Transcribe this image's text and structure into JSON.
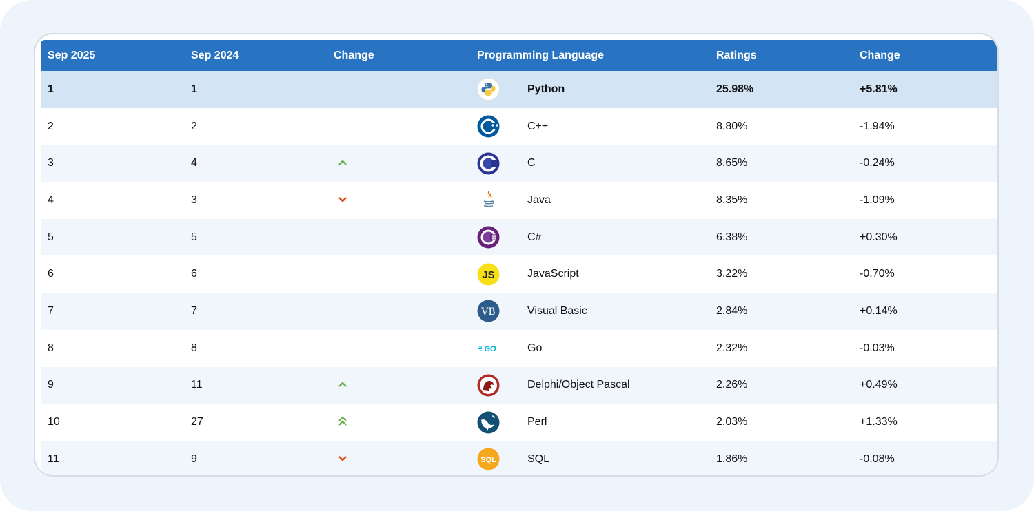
{
  "headers": {
    "col1": "Sep 2025",
    "col2": "Sep 2024",
    "col3": "Change",
    "col4": "Programming Language",
    "col5": "Ratings",
    "col6": "Change"
  },
  "rows": [
    {
      "rank_2025": "1",
      "rank_2024": "1",
      "trend": "none",
      "language": "Python",
      "logo": "python-logo-icon",
      "rating": "25.98%",
      "change": "+5.81%"
    },
    {
      "rank_2025": "2",
      "rank_2024": "2",
      "trend": "none",
      "language": "C++",
      "logo": "cpp-logo-icon",
      "rating": "8.80%",
      "change": "-1.94%"
    },
    {
      "rank_2025": "3",
      "rank_2024": "4",
      "trend": "up",
      "language": "C",
      "logo": "c-logo-icon",
      "rating": "8.65%",
      "change": "-0.24%"
    },
    {
      "rank_2025": "4",
      "rank_2024": "3",
      "trend": "down",
      "language": "Java",
      "logo": "java-logo-icon",
      "rating": "8.35%",
      "change": "-1.09%"
    },
    {
      "rank_2025": "5",
      "rank_2024": "5",
      "trend": "none",
      "language": "C#",
      "logo": "csharp-logo-icon",
      "rating": "6.38%",
      "change": "+0.30%"
    },
    {
      "rank_2025": "6",
      "rank_2024": "6",
      "trend": "none",
      "language": "JavaScript",
      "logo": "javascript-logo-icon",
      "logo_text": "JS",
      "rating": "3.22%",
      "change": "-0.70%"
    },
    {
      "rank_2025": "7",
      "rank_2024": "7",
      "trend": "none",
      "language": "Visual Basic",
      "logo": "visual-basic-logo-icon",
      "logo_text": "VB",
      "rating": "2.84%",
      "change": "+0.14%"
    },
    {
      "rank_2025": "8",
      "rank_2024": "8",
      "trend": "none",
      "language": "Go",
      "logo": "go-logo-icon",
      "logo_text": "GO",
      "rating": "2.32%",
      "change": "-0.03%"
    },
    {
      "rank_2025": "9",
      "rank_2024": "11",
      "trend": "up",
      "language": "Delphi/Object Pascal",
      "logo": "delphi-logo-icon",
      "rating": "2.26%",
      "change": "+0.49%"
    },
    {
      "rank_2025": "10",
      "rank_2024": "27",
      "trend": "double-up",
      "language": "Perl",
      "logo": "perl-logo-icon",
      "rating": "2.03%",
      "change": "+1.33%"
    },
    {
      "rank_2025": "11",
      "rank_2024": "9",
      "trend": "down",
      "language": "SQL",
      "logo": "sql-logo-icon",
      "logo_text": "SQL",
      "rating": "1.86%",
      "change": "-0.08%"
    }
  ],
  "colors": {
    "header_bg": "#2874c2",
    "highlight_row": "#d3e4f5",
    "trend_up": "#6ab04c",
    "trend_down": "#d9480f"
  }
}
